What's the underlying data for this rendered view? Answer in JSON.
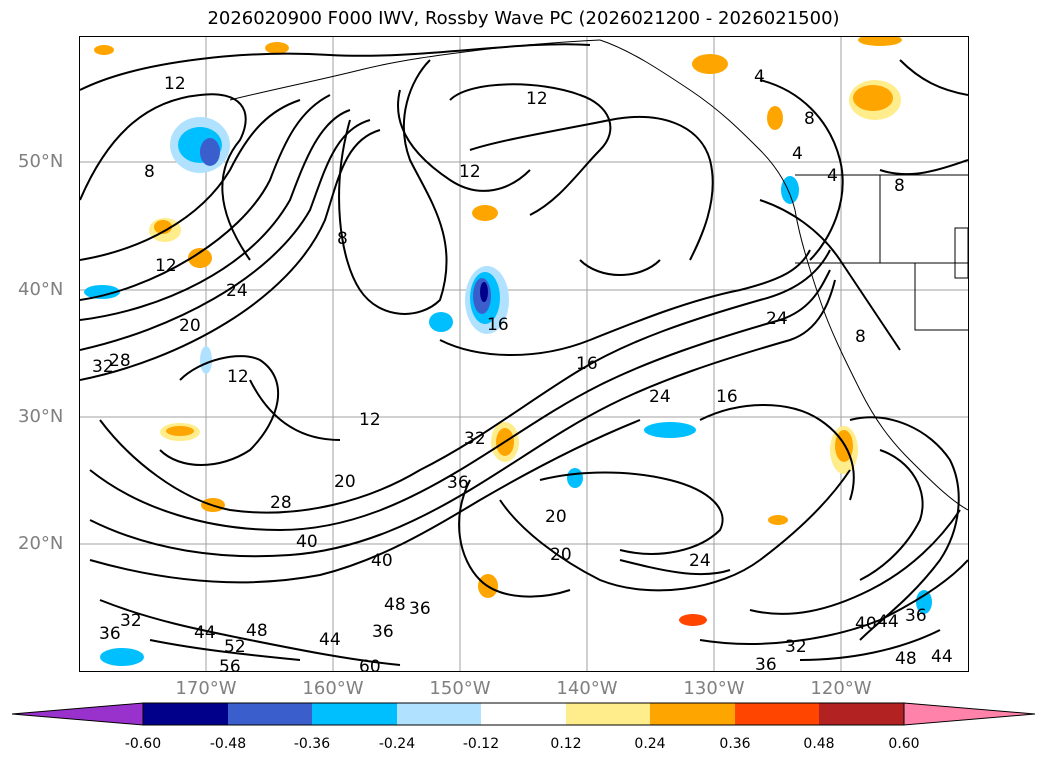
{
  "title": "2026020900 F000 IWV, Rossby Wave PC (2026021200 - 2026021500)",
  "lat_labels": [
    "50°N",
    "40°N",
    "30°N",
    "20°N"
  ],
  "lon_labels": [
    "170°W",
    "160°W",
    "150°W",
    "140°W",
    "130°W",
    "120°W"
  ],
  "contour_labels": [
    "12",
    "12",
    "12",
    "8",
    "8",
    "8",
    "8",
    "8",
    "4",
    "4",
    "4",
    "12",
    "24",
    "20",
    "28",
    "32",
    "12",
    "12",
    "16",
    "16",
    "24",
    "24",
    "16",
    "32",
    "36",
    "20",
    "28",
    "20",
    "20",
    "40",
    "40",
    "24",
    "32",
    "44",
    "48",
    "52",
    "36",
    "48",
    "44",
    "36",
    "40",
    "44",
    "32",
    "36",
    "48",
    "44",
    "60",
    "56",
    "36",
    "36"
  ],
  "colorbar": {
    "tick_labels": [
      "-0.60",
      "-0.48",
      "-0.36",
      "-0.24",
      "-0.12",
      "0.12",
      "0.24",
      "0.36",
      "0.48",
      "0.60"
    ],
    "colors": [
      "#9932cc",
      "#00008b",
      "#3a5fcd",
      "#00bfff",
      "#b0e2ff",
      "#ffffff",
      "#ffec8b",
      "#ffa500",
      "#ff4500",
      "#b22222",
      "#ff82ab"
    ]
  },
  "colors": {
    "contour": "#000000",
    "coast": "#000000",
    "grid": "#a0a0a0",
    "axis_label": "#808080"
  }
}
